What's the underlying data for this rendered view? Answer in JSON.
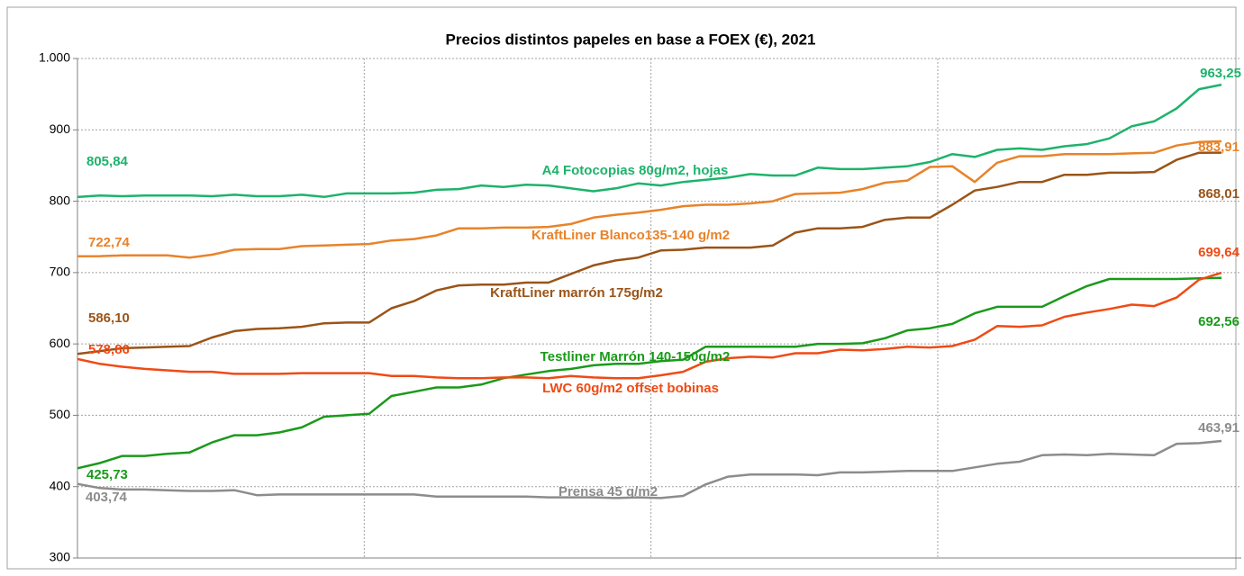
{
  "chart_data": {
    "type": "line",
    "title": "Precios distintos papeles en base a FOEX (€), 2021",
    "categories": [
      null,
      null,
      null,
      null,
      null,
      null,
      null,
      null,
      null,
      null,
      null,
      null,
      null,
      null,
      null,
      null,
      null,
      null,
      null,
      null,
      null,
      null,
      null,
      null,
      null,
      null,
      null,
      null,
      null,
      null,
      null,
      null,
      null,
      null,
      null,
      null,
      null,
      null,
      null,
      null,
      null,
      null,
      null,
      null,
      null,
      null,
      null,
      null,
      null,
      null,
      null,
      null
    ],
    "ylim": [
      300,
      1000
    ],
    "yticks": [
      300,
      400,
      500,
      600,
      700,
      800,
      900,
      {
        "value": 1000,
        "label": "1.000"
      }
    ],
    "grid": true,
    "series": [
      {
        "name": "A4 Fotocopias 80g/m2, hojas",
        "color": "#1db36b",
        "values": [
          805.84,
          808,
          807,
          808,
          808,
          808,
          807,
          809,
          807,
          807,
          809,
          806,
          811,
          811,
          811,
          812,
          816,
          817,
          822,
          820,
          823,
          822,
          818,
          814,
          818,
          825,
          822,
          827,
          830,
          833,
          838,
          836,
          836,
          847,
          845,
          845,
          847,
          849,
          855,
          866,
          862,
          872,
          874,
          872,
          877,
          880,
          888,
          905,
          912,
          930,
          957,
          963.25
        ],
        "value_labels": {
          "0": "805,84",
          "51": "963,25"
        }
      },
      {
        "name": "KraftLiner Blanco135-140 g/m2",
        "color": "#e8832a",
        "values": [
          722.74,
          723,
          724,
          724,
          724,
          721,
          725,
          732,
          733,
          733,
          737,
          738,
          739,
          740,
          745,
          747,
          752,
          762,
          762,
          763,
          763,
          764,
          768,
          777,
          781,
          784,
          788,
          793,
          795,
          795,
          797,
          800,
          810,
          811,
          812,
          817,
          826,
          829,
          848,
          849,
          827,
          854,
          863,
          863,
          866,
          866,
          866,
          867,
          868,
          878,
          883,
          883.91
        ],
        "value_labels": {
          "0": "722,74",
          "51": "883,91"
        }
      },
      {
        "name": "KraftLiner marrón 175g/m2",
        "color": "#9a5418",
        "values": [
          586.1,
          590,
          594,
          595,
          596,
          597,
          609,
          618,
          621,
          622,
          624,
          629,
          630,
          630,
          650,
          660,
          675,
          682,
          683,
          683,
          686,
          686,
          698,
          710,
          717,
          721,
          731,
          732,
          735,
          735,
          735,
          738,
          756,
          762,
          762,
          764,
          774,
          777,
          777,
          795,
          815,
          820,
          827,
          827,
          837,
          837,
          840,
          840,
          841,
          858,
          868,
          868.01
        ],
        "value_labels": {
          "0": "586,10",
          "51": "868,01"
        }
      },
      {
        "name": "Testliner Marrón 140-150g/m2",
        "color": "#1a9a1a",
        "values": [
          425.73,
          433,
          443,
          443,
          446,
          448,
          462,
          472,
          472,
          476,
          483,
          498,
          500,
          502,
          527,
          533,
          539,
          539,
          543,
          552,
          557,
          562,
          565,
          570,
          572,
          572,
          576,
          578,
          596,
          596,
          596,
          596,
          596,
          600,
          600,
          601,
          608,
          619,
          622,
          628,
          643,
          652,
          652,
          652,
          667,
          681,
          691,
          691,
          691,
          691,
          692,
          692.56
        ],
        "value_labels": {
          "0": "425,73",
          "51": "692,56"
        }
      },
      {
        "name": "LWC 60g/m2 offset bobinas",
        "color": "#f04a14",
        "values": [
          578.86,
          572,
          568,
          565,
          563,
          561,
          561,
          558,
          558,
          558,
          559,
          559,
          559,
          559,
          555,
          555,
          553,
          552,
          552,
          553,
          553,
          552,
          555,
          553,
          552,
          552,
          556,
          561,
          575,
          580,
          582,
          581,
          587,
          587,
          592,
          591,
          593,
          596,
          595,
          597,
          606,
          625,
          624,
          626,
          638,
          644,
          649,
          655,
          653,
          665,
          690,
          699.64
        ],
        "value_labels": {
          "0": "578,86",
          "51": "699,64"
        }
      },
      {
        "name": "Prensa 45 g/m2",
        "color": "#8c8c8c",
        "values": [
          403.74,
          398,
          396,
          396,
          395,
          394,
          394,
          395,
          388,
          389,
          389,
          389,
          389,
          389,
          389,
          389,
          386,
          386,
          386,
          386,
          386,
          385,
          385,
          385,
          384,
          385,
          384,
          387,
          403,
          414,
          417,
          417,
          417,
          416,
          420,
          420,
          421,
          422,
          422,
          422,
          427,
          432,
          435,
          444,
          445,
          444,
          446,
          445,
          444,
          460,
          461,
          463.91
        ],
        "value_labels": {
          "0": "403,74",
          "51": "463,91"
        }
      }
    ]
  }
}
